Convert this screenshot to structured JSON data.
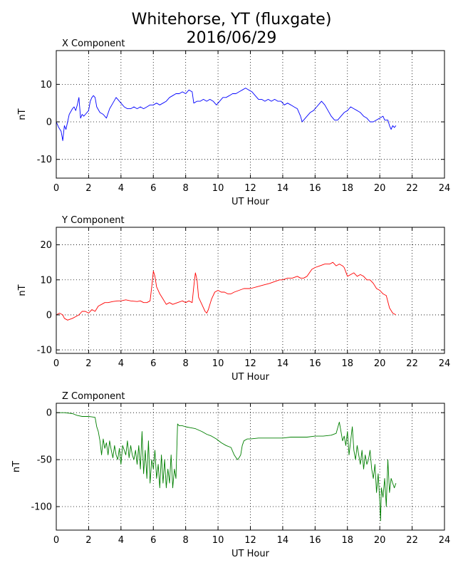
{
  "figure": {
    "title_line1": "Whitehorse, YT (fluxgate)",
    "title_line2": "2016/06/29"
  },
  "chart_data": [
    {
      "type": "line",
      "title": "X Component",
      "xlabel": "UT Hour",
      "ylabel": "nT",
      "xlim": [
        0,
        24
      ],
      "ylim": [
        -15,
        19
      ],
      "xticks": [
        0,
        2,
        4,
        6,
        8,
        10,
        12,
        14,
        16,
        18,
        20,
        22,
        24
      ],
      "yticks": [
        -10,
        0,
        10
      ],
      "grid": true,
      "series": [
        {
          "color": "#0000ff",
          "x": [
            0,
            0.15,
            0.3,
            0.4,
            0.5,
            0.6,
            0.8,
            1.0,
            1.1,
            1.2,
            1.3,
            1.4,
            1.5,
            1.6,
            1.7,
            1.8,
            2.0,
            2.1,
            2.2,
            2.3,
            2.4,
            2.5,
            2.7,
            2.9,
            3.1,
            3.3,
            3.5,
            3.7,
            3.8,
            4.0,
            4.2,
            4.4,
            4.6,
            4.8,
            5.0,
            5.2,
            5.4,
            5.6,
            5.8,
            6.0,
            6.2,
            6.4,
            6.6,
            6.8,
            7.0,
            7.2,
            7.4,
            7.6,
            7.8,
            8.0,
            8.2,
            8.4,
            8.5,
            8.7,
            8.9,
            9.1,
            9.3,
            9.5,
            9.7,
            9.9,
            10.1,
            10.3,
            10.5,
            10.7,
            10.9,
            11.1,
            11.3,
            11.5,
            11.7,
            11.9,
            12.1,
            12.3,
            12.5,
            12.7,
            12.9,
            13.1,
            13.3,
            13.5,
            13.7,
            13.9,
            14.1,
            14.3,
            14.5,
            14.7,
            14.9,
            15.1,
            15.2,
            15.3,
            15.5,
            15.7,
            15.9,
            16.1,
            16.3,
            16.4,
            16.6,
            16.8,
            17.0,
            17.2,
            17.4,
            17.6,
            17.8,
            18.0,
            18.2,
            18.4,
            18.6,
            18.8,
            19.0,
            19.2,
            19.4,
            19.6,
            19.8,
            20.0,
            20.2,
            20.3,
            20.5,
            20.6,
            20.7,
            20.8,
            20.9,
            21.0
          ],
          "y": [
            0,
            -1.5,
            -2.5,
            -5,
            -1,
            -2,
            2,
            3.5,
            4,
            3,
            4.5,
            6.5,
            1,
            2,
            1.5,
            2,
            3,
            5.5,
            6.5,
            7,
            6.5,
            4,
            2.5,
            2,
            1,
            3.5,
            5,
            6.5,
            6,
            5,
            4,
            3.5,
            3.5,
            4,
            3.5,
            4,
            3.5,
            4,
            4.5,
            4.5,
            5,
            4.5,
            5,
            5.5,
            6.5,
            7,
            7.5,
            7.5,
            8,
            7.5,
            8.5,
            8,
            5,
            5.5,
            5.5,
            6,
            5.5,
            6,
            5.5,
            4.5,
            5.5,
            6.5,
            6.5,
            7,
            7.5,
            7.5,
            8,
            8.5,
            9,
            8.5,
            8,
            7,
            6,
            6,
            5.5,
            6,
            5.5,
            6,
            5.5,
            5.5,
            4.5,
            5,
            4.5,
            4,
            3.5,
            1.5,
            0,
            0.5,
            1.5,
            2.5,
            3,
            4,
            5,
            5.5,
            4.5,
            3,
            1.5,
            0.5,
            0.5,
            1.5,
            2.5,
            3,
            4,
            3.5,
            3,
            2.5,
            1.5,
            1,
            0,
            0,
            0.5,
            1,
            1.5,
            0.5,
            0.5,
            -1,
            -2,
            -1,
            -1.5,
            -1
          ]
        }
      ]
    },
    {
      "type": "line",
      "title": "Y Component",
      "xlabel": "UT Hour",
      "ylabel": "nT",
      "xlim": [
        0,
        24
      ],
      "ylim": [
        -11,
        25
      ],
      "xticks": [
        0,
        2,
        4,
        6,
        8,
        10,
        12,
        14,
        16,
        18,
        20,
        22,
        24
      ],
      "yticks": [
        -10,
        0,
        10,
        20
      ],
      "grid": true,
      "series": [
        {
          "color": "#ff0000",
          "x": [
            0,
            0.2,
            0.4,
            0.5,
            0.7,
            1.0,
            1.2,
            1.4,
            1.6,
            1.8,
            2.0,
            2.2,
            2.4,
            2.6,
            2.8,
            3.0,
            3.2,
            3.5,
            3.8,
            4.0,
            4.3,
            4.6,
            5.0,
            5.2,
            5.4,
            5.6,
            5.8,
            5.9,
            6.0,
            6.1,
            6.2,
            6.4,
            6.6,
            6.8,
            7.0,
            7.2,
            7.5,
            7.8,
            8.0,
            8.2,
            8.4,
            8.5,
            8.6,
            8.7,
            8.8,
            8.9,
            9.0,
            9.1,
            9.2,
            9.3,
            9.4,
            9.5,
            9.6,
            9.8,
            10.0,
            10.2,
            10.4,
            10.6,
            10.8,
            11.0,
            11.3,
            11.6,
            12.0,
            12.4,
            12.8,
            13.2,
            13.5,
            13.8,
            14.0,
            14.3,
            14.6,
            14.9,
            15.1,
            15.3,
            15.5,
            15.8,
            16.0,
            16.3,
            16.6,
            16.9,
            17.1,
            17.3,
            17.5,
            17.7,
            17.8,
            18.0,
            18.2,
            18.4,
            18.6,
            18.8,
            19.0,
            19.2,
            19.4,
            19.6,
            19.8,
            20.0,
            20.2,
            20.4,
            20.6,
            20.8,
            21.0
          ],
          "y": [
            0,
            0.5,
            0,
            -1,
            -1.5,
            -1,
            -0.5,
            0,
            1,
            1,
            0.5,
            1.5,
            1,
            2.5,
            3,
            3.5,
            3.5,
            3.8,
            4,
            4,
            4.3,
            4,
            3.8,
            4,
            3.5,
            3.5,
            4,
            8,
            12.5,
            11,
            8,
            6,
            4.5,
            3,
            3.5,
            3,
            3.5,
            4,
            3.5,
            4,
            3.5,
            8,
            12,
            10,
            5,
            4,
            3,
            2,
            1,
            0.5,
            1.5,
            3,
            4.5,
            6.5,
            7,
            6.5,
            6.5,
            6,
            6,
            6.5,
            7,
            7.5,
            7.5,
            8,
            8.5,
            9,
            9.5,
            10,
            10,
            10.5,
            10.5,
            11,
            10.5,
            10.5,
            11,
            13,
            13.5,
            14,
            14.5,
            14.5,
            15,
            14,
            14.5,
            14,
            13.5,
            11,
            11.5,
            12,
            11,
            11.5,
            11,
            10,
            10,
            9,
            7.5,
            7,
            6,
            5.5,
            2,
            0.5,
            0
          ]
        }
      ]
    },
    {
      "type": "line",
      "title": "Z Component",
      "xlabel": "UT Hour",
      "ylabel": "nT",
      "xlim": [
        0,
        24
      ],
      "ylim": [
        -125,
        10
      ],
      "xticks": [
        0,
        2,
        4,
        6,
        8,
        10,
        12,
        14,
        16,
        18,
        20,
        22,
        24
      ],
      "yticks": [
        -100,
        -50,
        0
      ],
      "grid": true,
      "series": [
        {
          "color": "#007f00",
          "x": [
            0,
            0.5,
            1.0,
            1.3,
            1.6,
            2.0,
            2.2,
            2.4,
            2.5,
            2.6,
            2.7,
            2.8,
            2.9,
            3.0,
            3.1,
            3.2,
            3.3,
            3.4,
            3.5,
            3.6,
            3.7,
            3.8,
            3.9,
            4.0,
            4.1,
            4.2,
            4.3,
            4.4,
            4.5,
            4.6,
            4.7,
            4.8,
            4.9,
            5.0,
            5.1,
            5.2,
            5.3,
            5.4,
            5.5,
            5.6,
            5.7,
            5.8,
            5.9,
            6.0,
            6.1,
            6.2,
            6.3,
            6.4,
            6.5,
            6.6,
            6.7,
            6.8,
            6.9,
            7.0,
            7.1,
            7.2,
            7.3,
            7.4,
            7.5,
            7.6,
            7.8,
            8.0,
            8.3,
            8.6,
            9.0,
            9.3,
            9.6,
            9.9,
            10.2,
            10.5,
            10.8,
            11.0,
            11.2,
            11.3,
            11.4,
            11.5,
            11.6,
            11.8,
            12.0,
            12.5,
            13.0,
            13.5,
            14.0,
            14.5,
            15.0,
            15.5,
            16.0,
            16.5,
            17.0,
            17.3,
            17.5,
            17.6,
            17.7,
            17.8,
            17.9,
            18.0,
            18.1,
            18.2,
            18.3,
            18.4,
            18.5,
            18.6,
            18.7,
            18.8,
            18.9,
            19.0,
            19.1,
            19.2,
            19.3,
            19.4,
            19.5,
            19.6,
            19.7,
            19.8,
            19.9,
            20.0,
            20.05,
            20.1,
            20.2,
            20.3,
            20.4,
            20.5,
            20.6,
            20.7,
            20.8,
            20.9,
            21.0
          ],
          "y": [
            0,
            0,
            -1,
            -3,
            -4,
            -4,
            -4.5,
            -5,
            -15,
            -20,
            -30,
            -45,
            -28,
            -38,
            -32,
            -45,
            -30,
            -40,
            -48,
            -35,
            -45,
            -50,
            -38,
            -55,
            -35,
            -40,
            -45,
            -30,
            -48,
            -35,
            -45,
            -50,
            -40,
            -55,
            -35,
            -60,
            -20,
            -65,
            -40,
            -70,
            -30,
            -75,
            -50,
            -60,
            -40,
            -70,
            -55,
            -80,
            -45,
            -75,
            -50,
            -80,
            -60,
            -75,
            -45,
            -80,
            -60,
            -70,
            -12,
            -14,
            -14,
            -15,
            -16,
            -17,
            -20,
            -23,
            -25,
            -28,
            -32,
            -35,
            -37,
            -45,
            -50,
            -48,
            -45,
            -35,
            -30,
            -28,
            -28,
            -27,
            -27,
            -27,
            -27,
            -26,
            -26,
            -26,
            -25,
            -25,
            -24,
            -22,
            -10,
            -20,
            -30,
            -25,
            -35,
            -20,
            -45,
            -30,
            -15,
            -40,
            -50,
            -35,
            -45,
            -55,
            -40,
            -60,
            -45,
            -55,
            -50,
            -40,
            -60,
            -70,
            -55,
            -85,
            -65,
            -95,
            -115,
            -80,
            -90,
            -70,
            -100,
            -50,
            -85,
            -70,
            -75,
            -80,
            -75
          ]
        }
      ]
    }
  ]
}
